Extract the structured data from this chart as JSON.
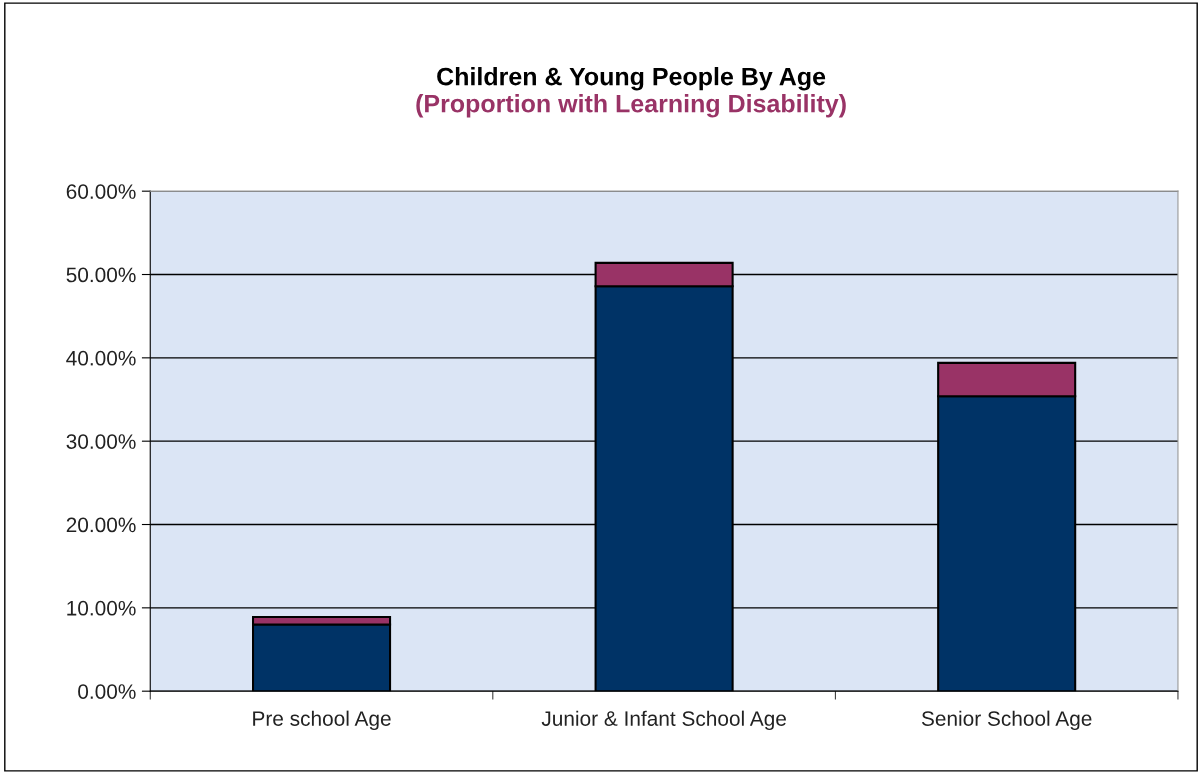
{
  "chart_data": {
    "type": "bar",
    "title": "Children & Young People By Age",
    "subtitle": "(Proportion with Learning Disability)",
    "categories": [
      "Pre school Age",
      "Junior & Infant School Age",
      "Senior School Age"
    ],
    "stacked": true,
    "series": [
      {
        "color": "#003366",
        "values": [
          8.0,
          48.6,
          35.4
        ]
      },
      {
        "color": "#993366",
        "values": [
          0.9,
          2.8,
          4.0
        ]
      }
    ],
    "ylim": [
      0,
      60
    ],
    "yticks": [
      {
        "value": 0,
        "label": "0.00%"
      },
      {
        "value": 10,
        "label": "10.00%"
      },
      {
        "value": 20,
        "label": "20.00%"
      },
      {
        "value": 30,
        "label": "30.00%"
      },
      {
        "value": 40,
        "label": "40.00%"
      },
      {
        "value": 50,
        "label": "50.00%"
      },
      {
        "value": 60,
        "label": "60.00%"
      }
    ],
    "grid": "y",
    "legend": false
  }
}
